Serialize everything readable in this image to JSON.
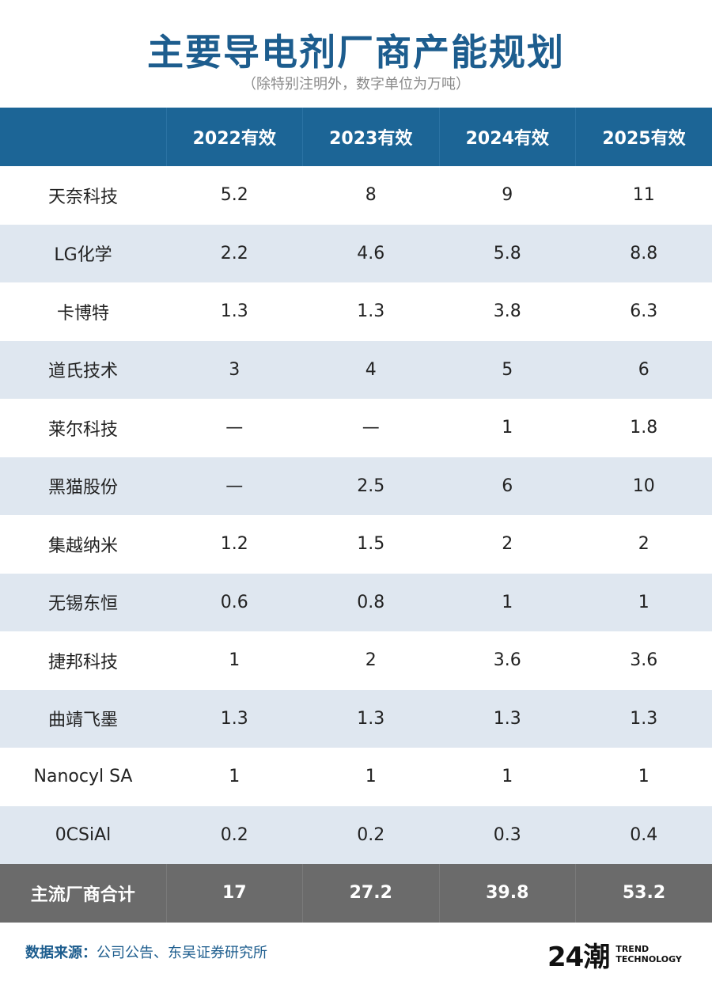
{
  "title": "主要导电剂厂商产能规划",
  "subtitle": "（除特别注明外，数字单位为万吨）",
  "table": {
    "headers": [
      "",
      "2022有效",
      "2023有效",
      "2024有效",
      "2025有效"
    ],
    "rows": [
      [
        "天奈科技",
        "5.2",
        "8",
        "9",
        "11"
      ],
      [
        "LG化学",
        "2.2",
        "4.6",
        "5.8",
        "8.8"
      ],
      [
        "卡博特",
        "1.3",
        "1.3",
        "3.8",
        "6.3"
      ],
      [
        "道氏技术",
        "3",
        "4",
        "5",
        "6"
      ],
      [
        "莱尔科技",
        "—",
        "—",
        "1",
        "1.8"
      ],
      [
        "黑猫股份",
        "—",
        "2.5",
        "6",
        "10"
      ],
      [
        "集越纳米",
        "1.2",
        "1.5",
        "2",
        "2"
      ],
      [
        "无锡东恒",
        "0.6",
        "0.8",
        "1",
        "1"
      ],
      [
        "捷邦科技",
        "1",
        "2",
        "3.6",
        "3.6"
      ],
      [
        "曲靖飞墨",
        "1.3",
        "1.3",
        "1.3",
        "1.3"
      ],
      [
        "Nanocyl SA",
        "1",
        "1",
        "1",
        "1"
      ],
      [
        "0CSiAl",
        "0.2",
        "0.2",
        "0.3",
        "0.4"
      ]
    ],
    "total": [
      "主流厂商合计",
      "17",
      "27.2",
      "39.8",
      "53.2"
    ]
  },
  "footer": {
    "label": "数据来源：",
    "text": "公司公告、东吴证券研究所"
  },
  "logo": {
    "mark": "24潮",
    "line1": "TREND",
    "line2": "TECHNOLOGY"
  }
}
